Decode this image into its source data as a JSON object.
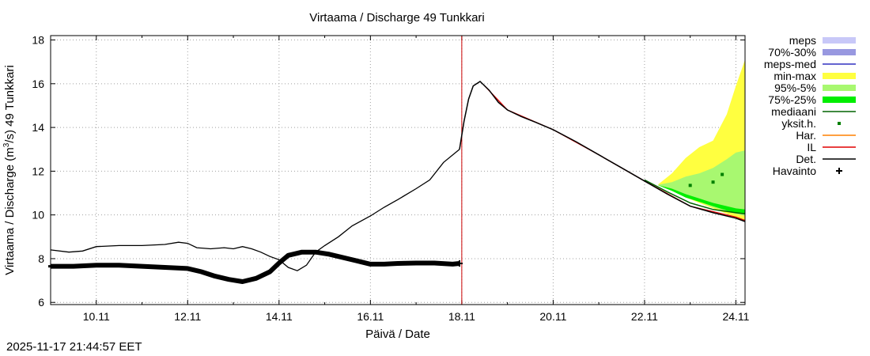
{
  "chart_data": {
    "type": "line",
    "title": "Virtaama / Discharge  49 Tunkkari",
    "xlabel": "Päivä / Date",
    "ylabel_prefix": "Virtaama / Discharge (m",
    "ylabel_sup": "3",
    "ylabel_suffix": "/s)  49 Tunkkari",
    "xlim": [
      9.0,
      24.2
    ],
    "ylim": [
      5.9,
      18.2
    ],
    "xticks": [
      10,
      12,
      14,
      16,
      18,
      20,
      22,
      24
    ],
    "xtick_labels": [
      "10.11",
      "12.11",
      "14.11",
      "16.11",
      "18.11",
      "20.11",
      "22.11",
      "24.11"
    ],
    "yticks": [
      6,
      8,
      10,
      12,
      14,
      16,
      18
    ],
    "ytick_labels": [
      "6",
      "8",
      "10",
      "12",
      "14",
      "16",
      "18"
    ],
    "forecast_start_x": 18.0,
    "legend": [
      {
        "key": "meps",
        "label": "meps",
        "kind": "band",
        "color": "#c8c8f8"
      },
      {
        "key": "p70_30",
        "label": "70%-30%",
        "kind": "band",
        "color": "#9898e0"
      },
      {
        "key": "meps_med",
        "label": "meps-med",
        "kind": "line",
        "color": "#3030c0"
      },
      {
        "key": "minmax",
        "label": "min-max",
        "kind": "band",
        "color": "#ffff40"
      },
      {
        "key": "p95_5",
        "label": "95%-5%",
        "kind": "band",
        "color": "#a8f870"
      },
      {
        "key": "p75_25",
        "label": "75%-25%",
        "kind": "band",
        "color": "#00ee00"
      },
      {
        "key": "median",
        "label": "mediaani",
        "kind": "line",
        "color": "#006400"
      },
      {
        "key": "single",
        "label": "yksit.h.",
        "kind": "dot",
        "color": "#008000"
      },
      {
        "key": "har",
        "label": "Har.",
        "kind": "line",
        "color": "#ff8000"
      },
      {
        "key": "il",
        "label": "IL",
        "kind": "line",
        "color": "#e00000"
      },
      {
        "key": "det",
        "label": "Det.",
        "kind": "line",
        "color": "#000000"
      },
      {
        "key": "obs",
        "label": "Havainto",
        "kind": "plus",
        "color": "#000000"
      }
    ],
    "series": {
      "simulated": {
        "x": [
          9.0,
          9.4,
          9.7,
          10.0,
          10.5,
          11.0,
          11.5,
          11.8,
          12.0,
          12.2,
          12.5,
          12.8,
          13.0,
          13.2,
          13.4,
          13.6,
          13.8,
          14.0,
          14.2,
          14.4,
          14.6,
          14.8,
          15.0,
          15.3,
          15.6,
          16.0,
          16.3,
          16.6,
          17.0,
          17.3,
          17.6,
          17.95
        ],
        "y": [
          8.4,
          8.3,
          8.35,
          8.55,
          8.6,
          8.6,
          8.65,
          8.75,
          8.7,
          8.5,
          8.45,
          8.5,
          8.45,
          8.55,
          8.45,
          8.3,
          8.1,
          7.95,
          7.6,
          7.45,
          7.7,
          8.3,
          8.6,
          9.0,
          9.5,
          9.95,
          10.35,
          10.7,
          11.2,
          11.6,
          12.4,
          13.0
        ]
      },
      "deterministic": {
        "x": [
          17.95,
          18.05,
          18.15,
          18.25,
          18.4,
          18.6,
          18.8,
          19.0,
          19.3,
          19.6,
          20.0,
          20.5,
          21.0,
          21.5,
          22.0,
          22.5,
          23.0,
          23.5,
          24.0,
          24.2
        ],
        "y": [
          13.0,
          14.3,
          15.3,
          15.9,
          16.1,
          15.7,
          15.15,
          14.8,
          14.5,
          14.25,
          13.9,
          13.35,
          12.75,
          12.15,
          11.55,
          10.95,
          10.4,
          10.1,
          9.85,
          9.7
        ]
      },
      "obs": {
        "x": [
          9.0,
          9.5,
          10.0,
          10.5,
          11.0,
          11.5,
          12.0,
          12.3,
          12.6,
          12.9,
          13.2,
          13.5,
          13.8,
          14.0,
          14.2,
          14.5,
          14.8,
          15.1,
          15.4,
          15.7,
          16.0,
          16.3,
          16.6,
          17.0,
          17.4,
          17.8,
          17.95
        ],
        "y": [
          7.65,
          7.65,
          7.7,
          7.7,
          7.65,
          7.6,
          7.55,
          7.4,
          7.2,
          7.05,
          6.95,
          7.1,
          7.4,
          7.8,
          8.15,
          8.3,
          8.3,
          8.2,
          8.05,
          7.9,
          7.75,
          7.75,
          7.78,
          7.8,
          7.8,
          7.75,
          7.78
        ]
      },
      "minmax_band": {
        "x": [
          22.3,
          22.6,
          22.9,
          23.2,
          23.5,
          23.8,
          24.0,
          24.2
        ],
        "lower": [
          11.35,
          11.1,
          10.8,
          10.55,
          10.3,
          10.05,
          9.9,
          9.75
        ],
        "upper": [
          11.4,
          11.9,
          12.6,
          13.1,
          13.4,
          14.6,
          15.9,
          17.1
        ]
      },
      "p95_5_band": {
        "x": [
          22.3,
          22.6,
          22.9,
          23.2,
          23.5,
          23.8,
          24.0,
          24.2
        ],
        "lower": [
          11.35,
          11.1,
          10.8,
          10.6,
          10.35,
          10.15,
          10.05,
          9.95
        ],
        "upper": [
          11.38,
          11.5,
          11.75,
          11.9,
          12.15,
          12.55,
          12.85,
          12.95
        ]
      },
      "p75_25_band": {
        "x": [
          22.3,
          22.6,
          22.9,
          23.2,
          23.5,
          23.8,
          24.0,
          24.2
        ],
        "lower": [
          11.35,
          11.1,
          10.8,
          10.6,
          10.4,
          10.2,
          10.1,
          10.05
        ],
        "upper": [
          11.36,
          11.2,
          10.95,
          10.75,
          10.55,
          10.4,
          10.3,
          10.25
        ]
      },
      "median": {
        "x": [
          22.0,
          22.5,
          23.0,
          23.5,
          24.0,
          24.2
        ],
        "y": [
          11.6,
          11.05,
          10.55,
          10.25,
          10.1,
          10.05
        ]
      },
      "il": {
        "x": [
          18.5,
          19.0,
          20.0,
          21.0,
          22.0,
          23.0,
          24.0,
          24.2
        ],
        "y": [
          15.9,
          14.8,
          13.9,
          12.75,
          11.55,
          10.4,
          9.9,
          9.75
        ]
      },
      "singles": {
        "x": [
          23.0,
          23.5,
          23.7
        ],
        "y": [
          11.35,
          11.5,
          11.85
        ]
      }
    }
  },
  "timestamp": "2025-11-17 21:44:57 EET"
}
